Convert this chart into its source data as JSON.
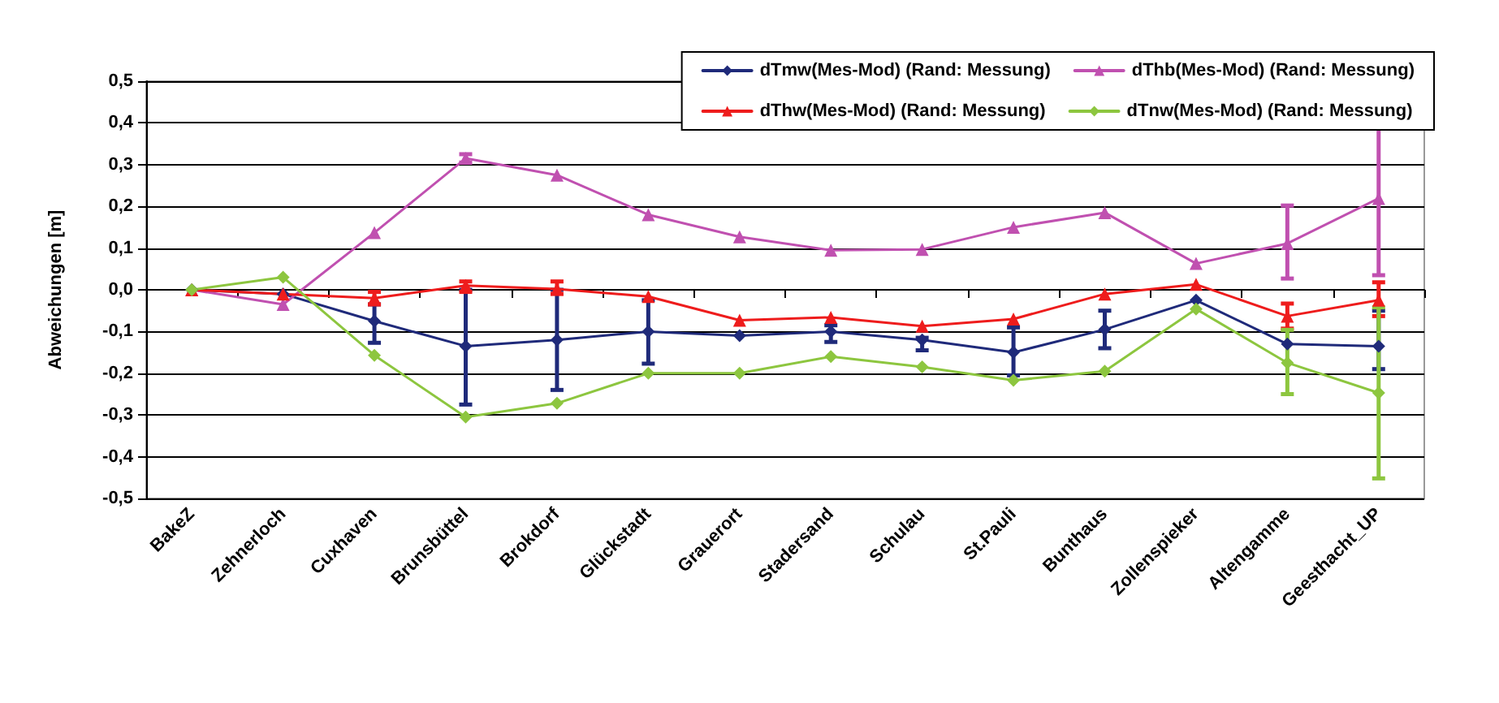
{
  "chart_data": {
    "type": "line",
    "ylabel": "Abweichungen [m]",
    "categories": [
      "BakeZ",
      "Zehnerloch",
      "Cuxhaven",
      "Brunsbüttel",
      "Brokdorf",
      "Glückstadt",
      "Grauerort",
      "Stadersand",
      "Schulau",
      "St.Pauli",
      "Bunthaus",
      "Zollenspieker",
      "Altengamme",
      "Geesthacht_UP"
    ],
    "series": [
      {
        "name": "dTmw(Mes-Mod) (Rand: Messung)",
        "color": "#1f2a7a",
        "marker": "diamond",
        "values": [
          0,
          -0.01,
          -0.075,
          -0.135,
          -0.12,
          -0.1,
          -0.11,
          -0.1,
          -0.12,
          -0.15,
          -0.095,
          -0.025,
          -0.13,
          -0.135
        ],
        "errors": [
          null,
          null,
          [
            -0.127,
            -0.035
          ],
          [
            -0.275,
            0
          ],
          [
            -0.24,
            0
          ],
          [
            -0.177,
            -0.025
          ],
          null,
          [
            -0.125,
            -0.085
          ],
          [
            -0.145,
            -0.115
          ],
          [
            -0.205,
            -0.09
          ],
          [
            -0.14,
            -0.05
          ],
          null,
          null,
          [
            -0.19,
            -0.05
          ]
        ]
      },
      {
        "name": "dThb(Mes-Mod) (Rand: Messung)",
        "color": "#c050b0",
        "marker": "triangle",
        "values": [
          0,
          -0.035,
          0.137,
          0.315,
          0.275,
          0.18,
          0.127,
          0.095,
          0.097,
          0.15,
          0.185,
          0.063,
          0.111,
          0.219
        ],
        "errors": [
          null,
          null,
          null,
          [
            0.305,
            0.325
          ],
          null,
          null,
          null,
          null,
          null,
          null,
          null,
          null,
          [
            0.027,
            0.202
          ],
          [
            0.035,
            0.428
          ]
        ]
      },
      {
        "name": "dThw(Mes-Mod) (Rand: Messung)",
        "color": "#ee1c1c",
        "marker": "triangle",
        "values": [
          0,
          -0.01,
          -0.02,
          0.01,
          0.002,
          -0.016,
          -0.073,
          -0.066,
          -0.087,
          -0.07,
          -0.01,
          0.013,
          -0.063,
          -0.025
        ],
        "errors": [
          null,
          null,
          [
            -0.035,
            -0.005
          ],
          [
            -0.005,
            0.02
          ],
          [
            -0.01,
            0.02
          ],
          null,
          null,
          null,
          null,
          null,
          null,
          null,
          [
            -0.093,
            -0.033
          ],
          [
            -0.063,
            0.018
          ]
        ]
      },
      {
        "name": "dTnw(Mes-Mod) (Rand: Messung)",
        "color": "#8dc63f",
        "marker": "diamond",
        "values": [
          0,
          0.03,
          -0.157,
          -0.305,
          -0.272,
          -0.2,
          -0.2,
          -0.16,
          -0.185,
          -0.217,
          -0.195,
          -0.046,
          -0.175,
          -0.247
        ],
        "errors": [
          null,
          null,
          null,
          null,
          null,
          null,
          null,
          null,
          null,
          null,
          null,
          null,
          [
            -0.25,
            -0.096
          ],
          [
            -0.452,
            -0.042
          ]
        ]
      }
    ],
    "ylim": [
      -0.5,
      0.5
    ],
    "yticks": [
      {
        "value": -0.5,
        "label": "-0,5"
      },
      {
        "value": -0.4,
        "label": "-0,4"
      },
      {
        "value": -0.3,
        "label": "-0,3"
      },
      {
        "value": -0.2,
        "label": "-0,2"
      },
      {
        "value": -0.1,
        "label": "-0,1"
      },
      {
        "value": 0,
        "label": "0,0"
      },
      {
        "value": 0.1,
        "label": "0,1"
      },
      {
        "value": 0.2,
        "label": "0,2"
      },
      {
        "value": 0.3,
        "label": "0,3"
      },
      {
        "value": 0.4,
        "label": "0,4"
      },
      {
        "value": 0.5,
        "label": "0,5"
      }
    ],
    "grid": "y",
    "legend": "top right"
  }
}
